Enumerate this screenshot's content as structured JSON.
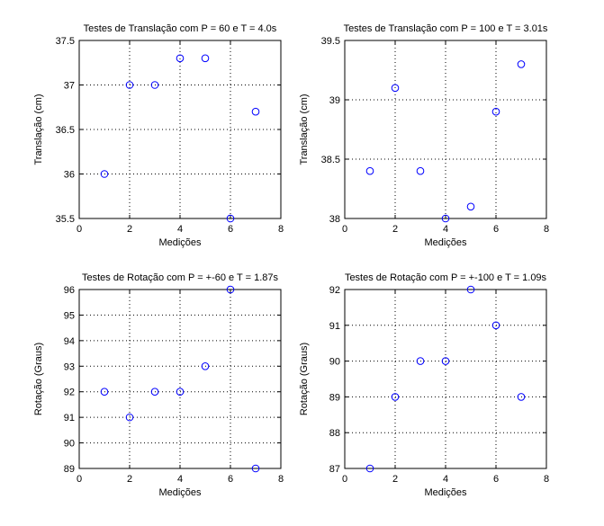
{
  "chart_data": [
    {
      "type": "scatter",
      "title": "Testes de Translação com P = 60 e T = 4.0s",
      "xlabel": "Medições",
      "ylabel": "Translação (cm)",
      "xlim": [
        0,
        8
      ],
      "ylim": [
        35.5,
        37.5
      ],
      "xticks": [
        "0",
        "2",
        "4",
        "6",
        "8"
      ],
      "yticks": [
        "35.5",
        "36",
        "36.5",
        "37",
        "37.5"
      ],
      "grid": true,
      "marker": "circle",
      "color": "#0000ff",
      "x": [
        1,
        2,
        3,
        4,
        5,
        6,
        7
      ],
      "y": [
        36.0,
        37.0,
        37.0,
        37.3,
        37.3,
        35.5,
        36.7
      ]
    },
    {
      "type": "scatter",
      "title": "Testes de Translação com P = 100 e T = 3.01s",
      "xlabel": "Medições",
      "ylabel": "Translação (cm)",
      "xlim": [
        0,
        8
      ],
      "ylim": [
        38,
        39.5
      ],
      "xticks": [
        "0",
        "2",
        "4",
        "6",
        "8"
      ],
      "yticks": [
        "38",
        "38.5",
        "39",
        "39.5"
      ],
      "grid": true,
      "marker": "circle",
      "color": "#0000ff",
      "x": [
        1,
        2,
        3,
        4,
        5,
        6,
        7
      ],
      "y": [
        38.4,
        39.1,
        38.4,
        38.0,
        38.1,
        38.9,
        39.3
      ]
    },
    {
      "type": "scatter",
      "title": "Testes de Rotação com P = +-60 e T = 1.87s",
      "xlabel": "Medições",
      "ylabel": "Rotação (Graus)",
      "xlim": [
        0,
        8
      ],
      "ylim": [
        89,
        96
      ],
      "xticks": [
        "0",
        "2",
        "4",
        "6",
        "8"
      ],
      "yticks": [
        "89",
        "90",
        "91",
        "92",
        "93",
        "94",
        "95",
        "96"
      ],
      "grid": true,
      "marker": "circle",
      "color": "#0000ff",
      "x": [
        1,
        2,
        3,
        4,
        5,
        6,
        7
      ],
      "y": [
        92,
        91,
        92,
        92,
        93,
        96,
        89
      ]
    },
    {
      "type": "scatter",
      "title": "Testes de Rotação com P = +-100 e T = 1.09s",
      "xlabel": "Medições",
      "ylabel": "Rotação (Graus)",
      "xlim": [
        0,
        8
      ],
      "ylim": [
        87,
        92
      ],
      "xticks": [
        "0",
        "2",
        "4",
        "6",
        "8"
      ],
      "yticks": [
        "87",
        "88",
        "89",
        "90",
        "91",
        "92"
      ],
      "grid": true,
      "marker": "circle",
      "color": "#0000ff",
      "x": [
        1,
        2,
        3,
        4,
        5,
        6,
        7
      ],
      "y": [
        87,
        89,
        90,
        90,
        92,
        91,
        89
      ]
    }
  ]
}
